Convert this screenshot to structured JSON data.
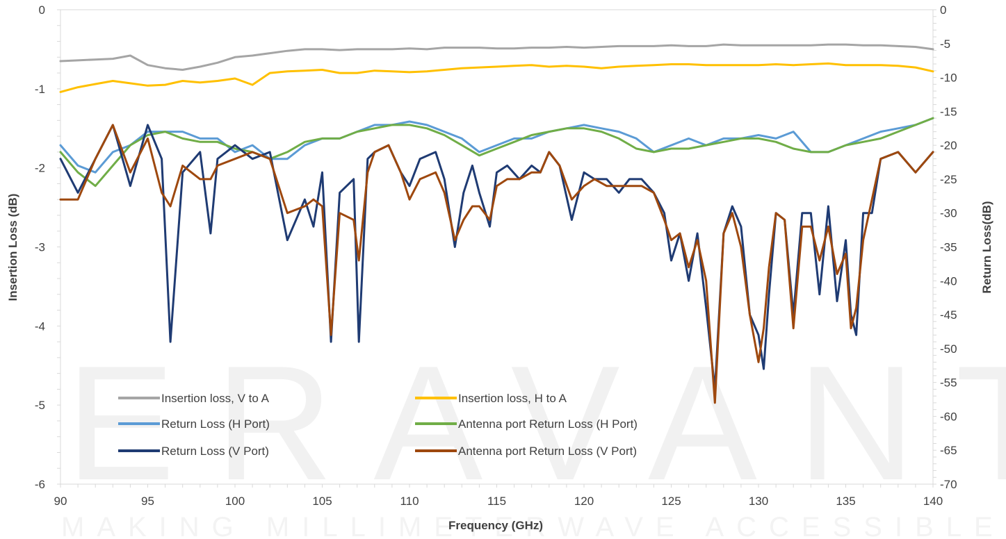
{
  "watermark": {
    "logo": "ERAVANT",
    "tagline": "MAKING MILLIMETERWAVE ACCESSIBLE"
  },
  "chart_data": {
    "type": "line",
    "xlabel": "Frequency (GHz)",
    "ylabel_left": "Insertion Loss (dB)",
    "ylabel_right": "Return Loss(dB)",
    "xlim": [
      90,
      140
    ],
    "ylim_left": [
      -6,
      0
    ],
    "ylim_right": [
      -70,
      0
    ],
    "x_ticks": [
      90,
      95,
      100,
      105,
      110,
      115,
      120,
      125,
      130,
      135,
      140
    ],
    "y_left_ticks": [
      0,
      -1,
      -2,
      -3,
      -4,
      -5,
      -6
    ],
    "y_right_ticks": [
      0,
      -5,
      -10,
      -15,
      -20,
      -25,
      -30,
      -35,
      -40,
      -45,
      -50,
      -55,
      -60,
      -65,
      -70
    ],
    "grid": false,
    "legend_position": "bottom-left inside plot",
    "series": [
      {
        "name": "Insertion loss, V to A",
        "axis": "left",
        "color": "#a5a5a5",
        "x": [
          90,
          91,
          92,
          93,
          94,
          95,
          96,
          97,
          98,
          99,
          100,
          101,
          102,
          103,
          104,
          105,
          106,
          107,
          108,
          109,
          110,
          111,
          112,
          113,
          114,
          115,
          116,
          117,
          118,
          119,
          120,
          121,
          122,
          123,
          124,
          125,
          126,
          127,
          128,
          129,
          130,
          131,
          132,
          133,
          134,
          135,
          136,
          137,
          138,
          139,
          140
        ],
        "y": [
          -0.65,
          -0.64,
          -0.63,
          -0.62,
          -0.58,
          -0.7,
          -0.74,
          -0.76,
          -0.72,
          -0.67,
          -0.6,
          -0.58,
          -0.55,
          -0.52,
          -0.5,
          -0.5,
          -0.51,
          -0.5,
          -0.5,
          -0.5,
          -0.49,
          -0.5,
          -0.48,
          -0.48,
          -0.48,
          -0.49,
          -0.49,
          -0.48,
          -0.48,
          -0.47,
          -0.48,
          -0.47,
          -0.46,
          -0.46,
          -0.46,
          -0.45,
          -0.46,
          -0.46,
          -0.44,
          -0.45,
          -0.45,
          -0.45,
          -0.45,
          -0.45,
          -0.44,
          -0.44,
          -0.45,
          -0.45,
          -0.46,
          -0.47,
          -0.5
        ]
      },
      {
        "name": "Insertion loss, H to A",
        "axis": "left",
        "color": "#ffc000",
        "x": [
          90,
          91,
          92,
          93,
          94,
          95,
          96,
          97,
          98,
          99,
          100,
          101,
          102,
          103,
          104,
          105,
          106,
          107,
          108,
          109,
          110,
          111,
          112,
          113,
          114,
          115,
          116,
          117,
          118,
          119,
          120,
          121,
          122,
          123,
          124,
          125,
          126,
          127,
          128,
          129,
          130,
          131,
          132,
          133,
          134,
          135,
          136,
          137,
          138,
          139,
          140
        ],
        "y": [
          -1.04,
          -0.98,
          -0.94,
          -0.9,
          -0.93,
          -0.96,
          -0.95,
          -0.9,
          -0.92,
          -0.9,
          -0.87,
          -0.95,
          -0.8,
          -0.78,
          -0.77,
          -0.76,
          -0.8,
          -0.8,
          -0.77,
          -0.78,
          -0.79,
          -0.78,
          -0.76,
          -0.74,
          -0.73,
          -0.72,
          -0.71,
          -0.7,
          -0.72,
          -0.71,
          -0.72,
          -0.74,
          -0.72,
          -0.71,
          -0.7,
          -0.69,
          -0.69,
          -0.7,
          -0.7,
          -0.7,
          -0.7,
          -0.69,
          -0.7,
          -0.69,
          -0.68,
          -0.7,
          -0.7,
          -0.7,
          -0.71,
          -0.73,
          -0.78
        ]
      },
      {
        "name": "Return Loss (H Port)",
        "axis": "right",
        "color": "#5b9bd5",
        "x": [
          90,
          91,
          92,
          93,
          94,
          95,
          96,
          97,
          98,
          99,
          100,
          101,
          102,
          103,
          104,
          105,
          106,
          107,
          108,
          109,
          110,
          111,
          112,
          113,
          114,
          115,
          116,
          117,
          118,
          119,
          120,
          121,
          122,
          123,
          124,
          125,
          126,
          127,
          128,
          129,
          130,
          131,
          132,
          133,
          134,
          135,
          136,
          137,
          138,
          139,
          140
        ],
        "y": [
          -20,
          -23,
          -24,
          -21,
          -20,
          -18,
          -18,
          -18,
          -19,
          -19,
          -21,
          -20,
          -22,
          -22,
          -20,
          -19,
          -19,
          -18,
          -17,
          -17,
          -16.5,
          -17,
          -18,
          -19,
          -21,
          -20,
          -19,
          -19,
          -18,
          -17.5,
          -17,
          -17.5,
          -18,
          -19,
          -21,
          -20,
          -19,
          -20,
          -19,
          -19,
          -18.5,
          -19,
          -18,
          -21,
          -21,
          -20,
          -19,
          -18,
          -17.5,
          -17,
          -16
        ]
      },
      {
        "name": "Antenna port Return Loss (H Port)",
        "axis": "right",
        "color": "#70ad47",
        "x": [
          90,
          91,
          92,
          93,
          94,
          95,
          96,
          97,
          98,
          99,
          100,
          101,
          102,
          103,
          104,
          105,
          106,
          107,
          108,
          109,
          110,
          111,
          112,
          113,
          114,
          115,
          116,
          117,
          118,
          119,
          120,
          121,
          122,
          123,
          124,
          125,
          126,
          127,
          128,
          129,
          130,
          131,
          132,
          133,
          134,
          135,
          136,
          137,
          138,
          139,
          140
        ],
        "y": [
          -21,
          -24,
          -26,
          -23,
          -20,
          -18.5,
          -18,
          -19,
          -19.5,
          -19.5,
          -20.5,
          -21,
          -22,
          -21,
          -19.5,
          -19,
          -19,
          -18,
          -17.5,
          -17,
          -17,
          -17.5,
          -18.5,
          -20,
          -21.5,
          -20.5,
          -19.5,
          -18.5,
          -18,
          -17.5,
          -17.5,
          -18,
          -19,
          -20.5,
          -21,
          -20.5,
          -20.5,
          -20,
          -19.5,
          -19,
          -19,
          -19.5,
          -20.5,
          -21,
          -21,
          -20,
          -19.5,
          -19,
          -18,
          -17,
          -16
        ]
      },
      {
        "name": "Return Loss (V Port)",
        "axis": "right",
        "color": "#1f3b73",
        "x": [
          90,
          91,
          92,
          93,
          94,
          95,
          95.8,
          96.3,
          97,
          98,
          98.6,
          99,
          100,
          101,
          102,
          103,
          104,
          104.5,
          105,
          105.5,
          106,
          106.8,
          107.1,
          107.6,
          108,
          108.8,
          109.5,
          110,
          110.6,
          111.5,
          112,
          112.6,
          113.1,
          113.6,
          114,
          114.6,
          115,
          115.6,
          116.3,
          117,
          117.5,
          118,
          118.6,
          119.3,
          120,
          120.6,
          121.3,
          122,
          122.6,
          123.3,
          124,
          124.6,
          125,
          125.5,
          126,
          126.5,
          127,
          127.5,
          128,
          128.5,
          129,
          129.5,
          130,
          130.3,
          130.6,
          131,
          131.5,
          132,
          132.5,
          133,
          133.5,
          134,
          134.5,
          135,
          135.3,
          135.6,
          136,
          136.5,
          137,
          138,
          139,
          140
        ],
        "y": [
          -22,
          -27,
          -22,
          -17,
          -26,
          -17,
          -22,
          -49,
          -24,
          -21,
          -33,
          -22,
          -20,
          -22,
          -21,
          -34,
          -28,
          -32,
          -24,
          -49,
          -27,
          -25,
          -49,
          -22,
          -21,
          -20,
          -24,
          -26,
          -22,
          -21,
          -25,
          -35,
          -27,
          -23,
          -27,
          -32,
          -24,
          -23,
          -25,
          -23,
          -24,
          -21,
          -23,
          -31,
          -24,
          -25,
          -25,
          -27,
          -25,
          -25,
          -27,
          -30,
          -37,
          -33,
          -40,
          -33,
          -44,
          -56,
          -33,
          -29,
          -32,
          -45,
          -48,
          -53,
          -42,
          -30,
          -31,
          -45,
          -30,
          -30,
          -42,
          -29,
          -43,
          -34,
          -45,
          -48,
          -30,
          -30,
          -22,
          -21,
          -24,
          -21
        ]
      },
      {
        "name": "Antenna port Return Loss (V Port)",
        "axis": "right",
        "color": "#9e480e",
        "x": [
          90,
          91,
          92,
          93,
          94,
          95,
          95.8,
          96.3,
          97,
          98,
          98.6,
          99,
          100,
          101,
          102,
          103,
          104,
          104.5,
          105,
          105.5,
          106,
          106.8,
          107.1,
          107.6,
          108,
          108.8,
          109.5,
          110,
          110.6,
          111.5,
          112,
          112.6,
          113.1,
          113.6,
          114,
          114.6,
          115,
          115.6,
          116.3,
          117,
          117.5,
          118,
          118.6,
          119.3,
          120,
          120.6,
          121.3,
          122,
          122.6,
          123.3,
          124,
          124.6,
          125,
          125.5,
          126,
          126.5,
          127,
          127.5,
          128,
          128.5,
          129,
          129.5,
          130,
          130.3,
          130.6,
          131,
          131.5,
          132,
          132.5,
          133,
          133.5,
          134,
          134.5,
          135,
          135.3,
          135.6,
          136,
          136.5,
          137,
          138,
          139,
          140
        ],
        "y": [
          -28,
          -28,
          -22,
          -17,
          -24,
          -19,
          -27,
          -29,
          -23,
          -25,
          -25,
          -23,
          -22,
          -21,
          -22,
          -30,
          -29,
          -28,
          -29,
          -48,
          -30,
          -31,
          -37,
          -24,
          -21,
          -20,
          -24,
          -28,
          -25,
          -24,
          -27,
          -34,
          -31,
          -29,
          -29,
          -31,
          -26,
          -25,
          -25,
          -24,
          -24,
          -21,
          -23,
          -28,
          -26,
          -25,
          -26,
          -26,
          -26,
          -26,
          -27,
          -31,
          -34,
          -33,
          -38,
          -34,
          -40,
          -58,
          -33,
          -30,
          -35,
          -45,
          -52,
          -47,
          -38,
          -30,
          -31,
          -47,
          -32,
          -32,
          -37,
          -32,
          -39,
          -36,
          -47,
          -44,
          -34,
          -28,
          -22,
          -21,
          -24,
          -21
        ]
      }
    ]
  }
}
